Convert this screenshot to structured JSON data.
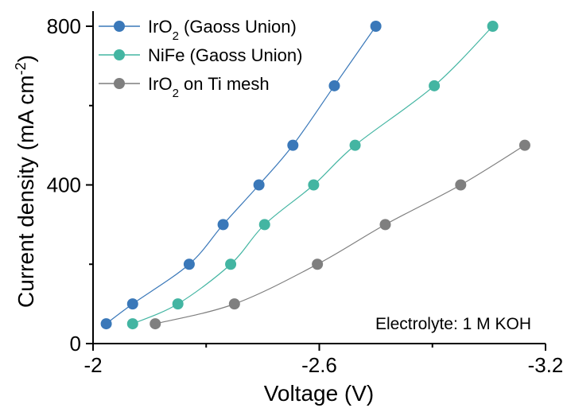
{
  "chart_data": {
    "type": "line",
    "xlabel": "Voltage (V)",
    "ylabel_main": "Current density (mA cm",
    "ylabel_sup": "-2",
    "ylabel_close": ")",
    "xlim": [
      -2.0,
      -3.2
    ],
    "ylim": [
      0,
      800
    ],
    "xticks": [
      -2.0,
      -2.6,
      -3.2
    ],
    "xtick_labels": [
      "-2",
      "-2.6",
      "-3.2"
    ],
    "yticks": [
      0,
      400,
      800
    ],
    "ytick_labels": [
      "0",
      "400",
      "800"
    ],
    "annotation": "Electrolyte: 1 M KOH",
    "legend_position": "top-left",
    "series": [
      {
        "name": "IrO2 (Gaoss Union)",
        "name_base": "IrO",
        "name_sub": "2",
        "name_rest": " (Gaoss Union)",
        "color": "#3a78b9",
        "x": [
          -2.035,
          -2.105,
          -2.255,
          -2.345,
          -2.44,
          -2.53,
          -2.64,
          -2.75
        ],
        "y": [
          50,
          100,
          200,
          300,
          400,
          500,
          650,
          800
        ]
      },
      {
        "name": "NiFe (Gaoss Union)",
        "name_base": "NiFe (Gaoss Union)",
        "name_sub": "",
        "name_rest": "",
        "color": "#43b5a2",
        "x": [
          -2.105,
          -2.225,
          -2.365,
          -2.455,
          -2.585,
          -2.695,
          -2.905,
          -3.06
        ],
        "y": [
          50,
          100,
          200,
          300,
          400,
          500,
          650,
          800
        ]
      },
      {
        "name": "IrO2 on Ti mesh",
        "name_base": "IrO",
        "name_sub": "2",
        "name_rest": " on Ti mesh",
        "color": "#7f7f7f",
        "x": [
          -2.165,
          -2.375,
          -2.595,
          -2.775,
          -2.975,
          -3.145
        ],
        "y": [
          50,
          100,
          200,
          300,
          400,
          500
        ]
      }
    ]
  }
}
